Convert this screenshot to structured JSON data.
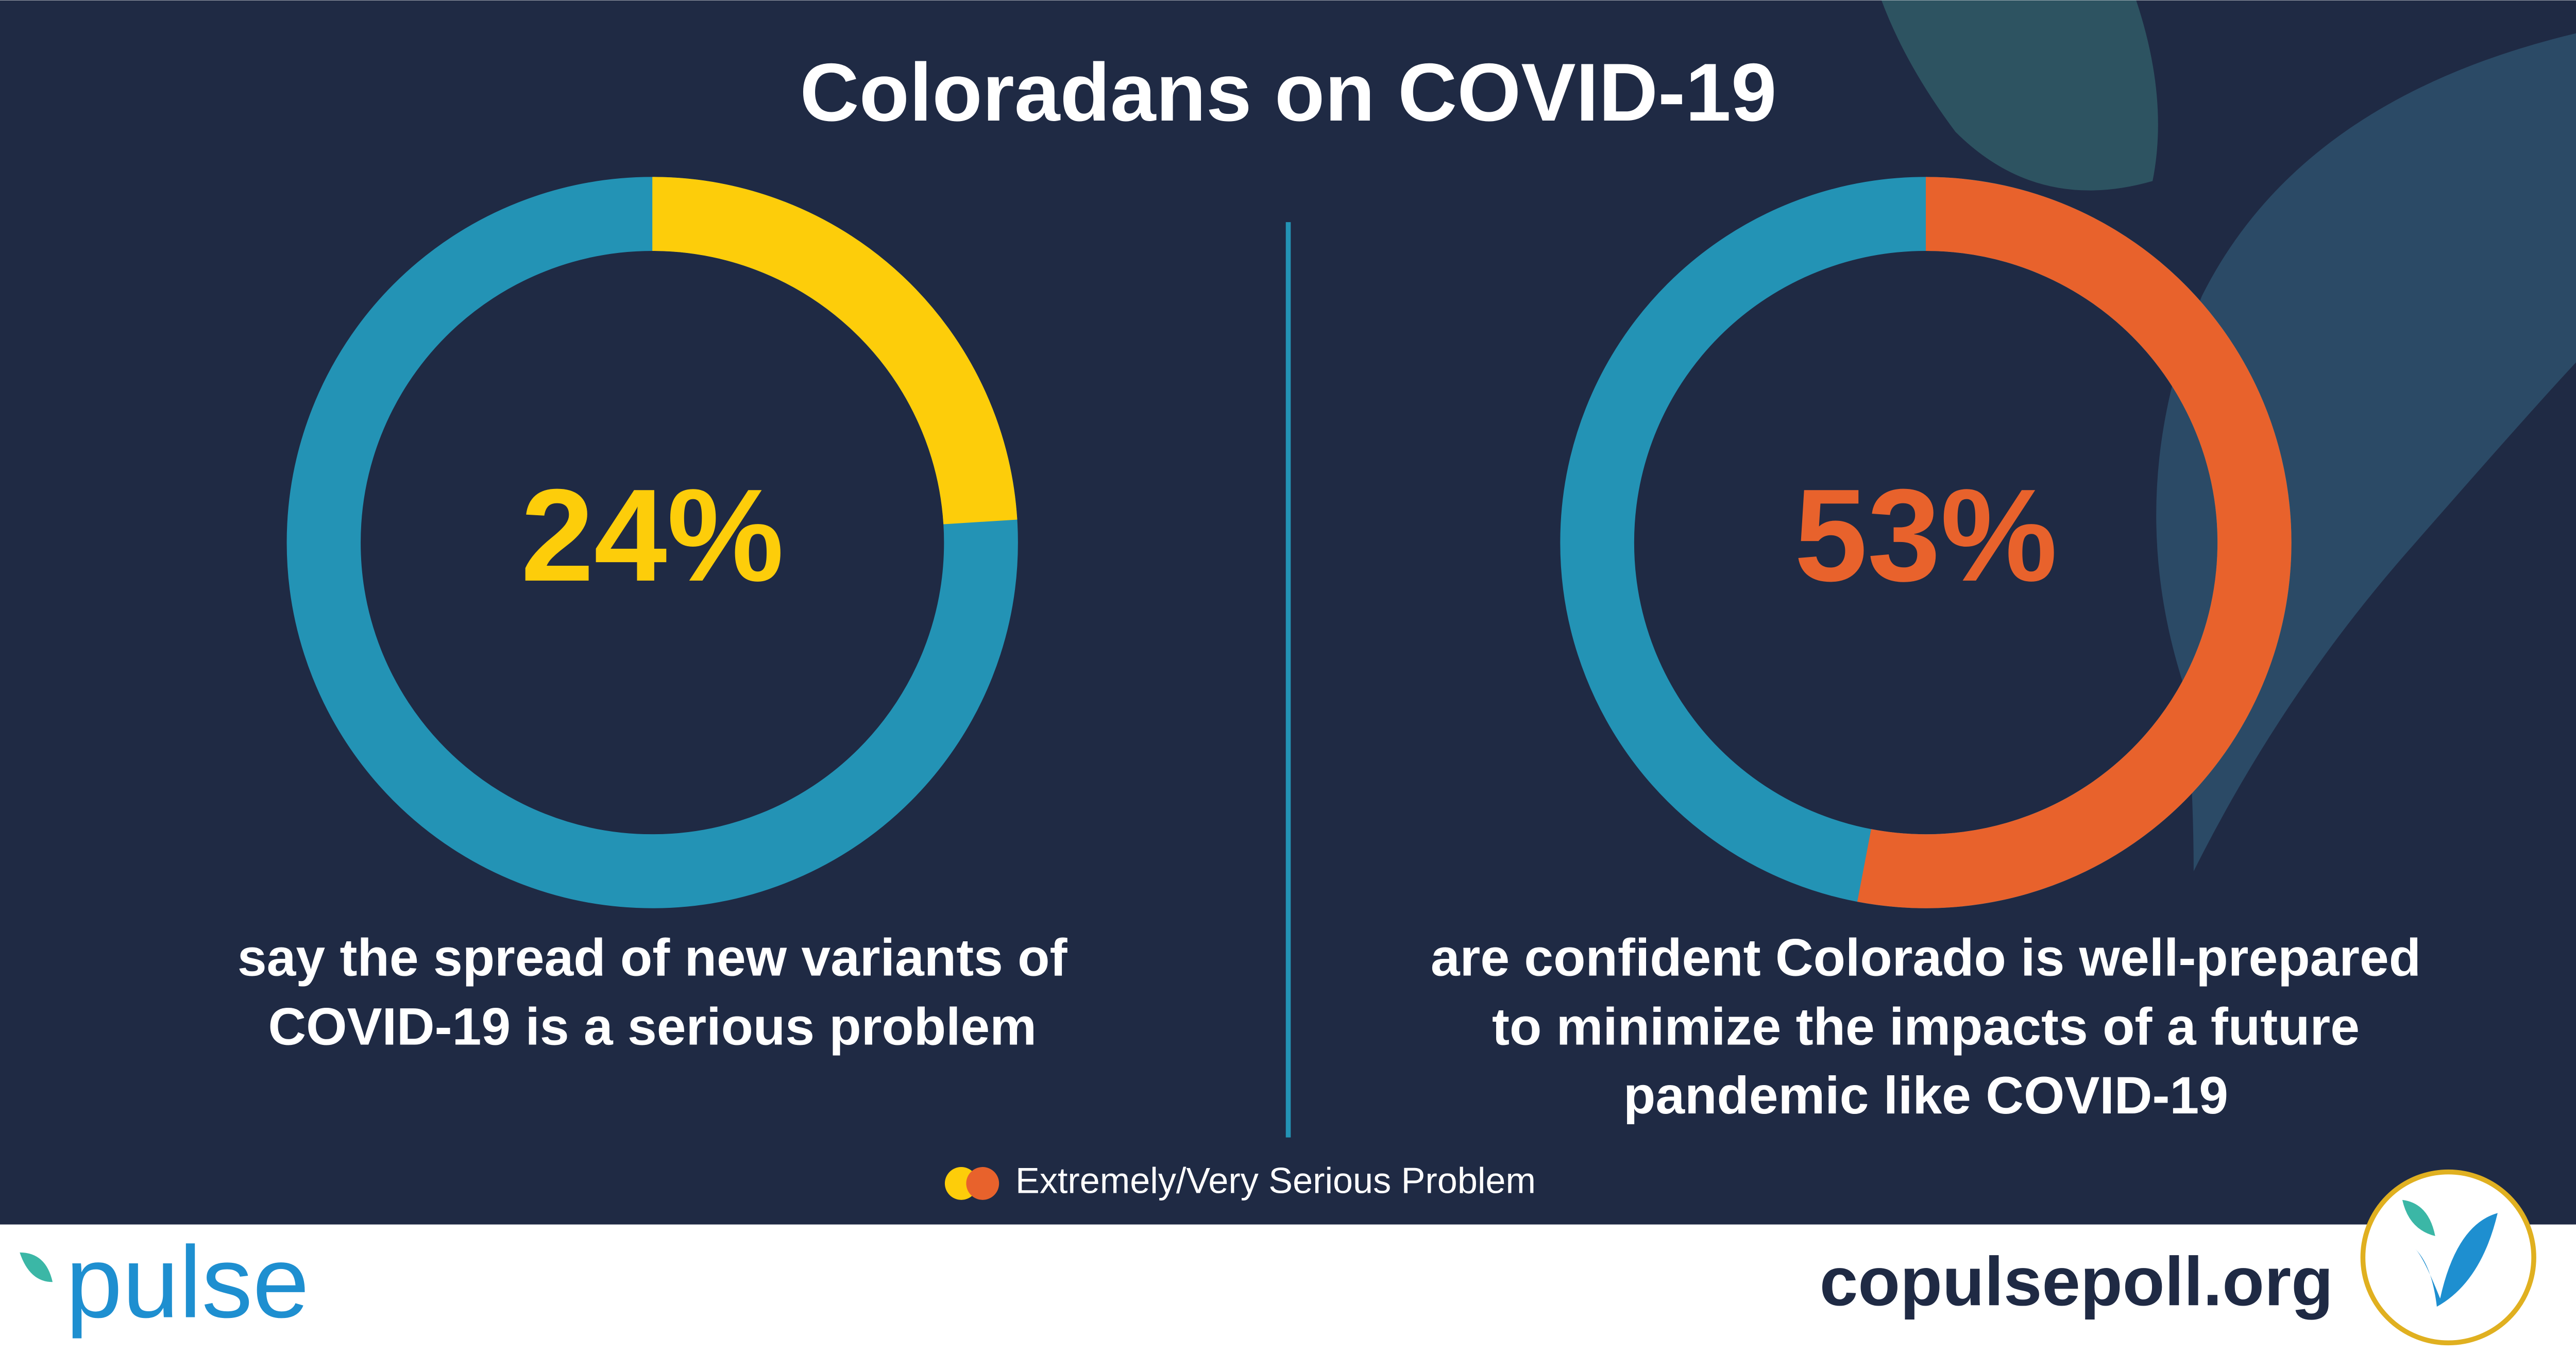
{
  "title": "Coloradans on COVID-19",
  "chart_data": [
    {
      "type": "pie",
      "donut": true,
      "values": [
        24
      ],
      "value_labels": [
        "24%"
      ],
      "color": "#fdcd0a",
      "track_color": "#2393b5",
      "caption": [
        "say the spread of new variants of",
        "COVID-19 is a serious problem"
      ]
    },
    {
      "type": "pie",
      "donut": true,
      "values": [
        53
      ],
      "value_labels": [
        "53%"
      ],
      "color": "#e8622c",
      "track_color": "#2393b5",
      "caption": [
        "are confident Colorado is well-prepared",
        "to minimize the impacts of a future",
        "pandemic like COVID-19"
      ]
    }
  ],
  "legend": "Extremely/Very Serious Problem",
  "footer": {
    "logo": "pulse",
    "url": "copulsepoll.org"
  }
}
